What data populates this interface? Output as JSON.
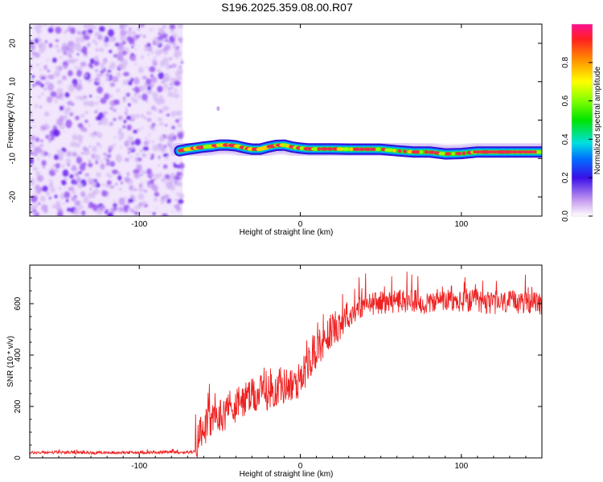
{
  "title": "S196.2025.359.08.00.R07",
  "colors": {
    "snr_line": "#ee2222",
    "axis": "#000000",
    "noise": "#8a2be2",
    "trace_core": "#e8304a"
  },
  "chart_data": [
    {
      "type": "heatmap",
      "name": "spectrogram",
      "xlabel": "Height of straight line (km)",
      "ylabel": "Frequency (Hz)",
      "xlim": [
        -168,
        150
      ],
      "ylim": [
        -25,
        25
      ],
      "xticks": [
        -100,
        0,
        100
      ],
      "yticks": [
        -20,
        -10,
        0,
        10,
        20
      ],
      "noise_region_x": [
        -168,
        -73
      ],
      "trace": {
        "x": [
          -75,
          -70,
          -65,
          -60,
          -55,
          -50,
          -45,
          -40,
          -35,
          -30,
          -25,
          -20,
          -15,
          -10,
          -5,
          0,
          5,
          10,
          20,
          30,
          40,
          50,
          60,
          70,
          80,
          90,
          100,
          110,
          120,
          130,
          140,
          150
        ],
        "freq": [
          -8,
          -7.6,
          -7.3,
          -7,
          -6.8,
          -6.5,
          -6.5,
          -6.7,
          -7.2,
          -7.6,
          -7.6,
          -7,
          -6.6,
          -6.5,
          -7,
          -7.3,
          -7.5,
          -7.5,
          -7.5,
          -7.6,
          -7.6,
          -7.6,
          -8,
          -8.3,
          -8.3,
          -8.8,
          -8.7,
          -8.3,
          -8.3,
          -8.3,
          -8.3,
          -8.3
        ]
      },
      "colorbar": {
        "label": "Normalized spectral amplitude",
        "ticks": [
          "0.0",
          "0.2",
          "0.4",
          "0.6",
          "0.8"
        ],
        "range": [
          0,
          1
        ]
      }
    },
    {
      "type": "line",
      "name": "snr",
      "xlabel": "Height of straight line (km)",
      "ylabel": "SNR (10 * v/v)",
      "xlim": [
        -168,
        150
      ],
      "ylim": [
        0,
        750
      ],
      "xticks": [
        -100,
        0,
        100
      ],
      "yticks": [
        0,
        200,
        400,
        600
      ],
      "series": [
        {
          "name": "SNR",
          "x": [
            -168,
            -150,
            -130,
            -110,
            -90,
            -70,
            -65,
            -62,
            -58,
            -54,
            -50,
            -46,
            -42,
            -38,
            -35,
            -32,
            -28,
            -24,
            -22,
            -20,
            -16,
            -12,
            -8,
            -4,
            -1,
            0,
            3,
            6,
            10,
            15,
            20,
            25,
            30,
            35,
            40,
            45,
            50,
            60,
            70,
            80,
            90,
            100,
            110,
            120,
            130,
            140,
            150
          ],
          "values": [
            20,
            22,
            20,
            21,
            22,
            22,
            25,
            110,
            130,
            150,
            165,
            180,
            200,
            210,
            225,
            235,
            240,
            255,
            260,
            255,
            265,
            270,
            290,
            270,
            300,
            330,
            340,
            380,
            420,
            460,
            500,
            530,
            550,
            580,
            595,
            600,
            605,
            610,
            610,
            600,
            610,
            605,
            610,
            600,
            605,
            605,
            600
          ]
        }
      ]
    }
  ]
}
